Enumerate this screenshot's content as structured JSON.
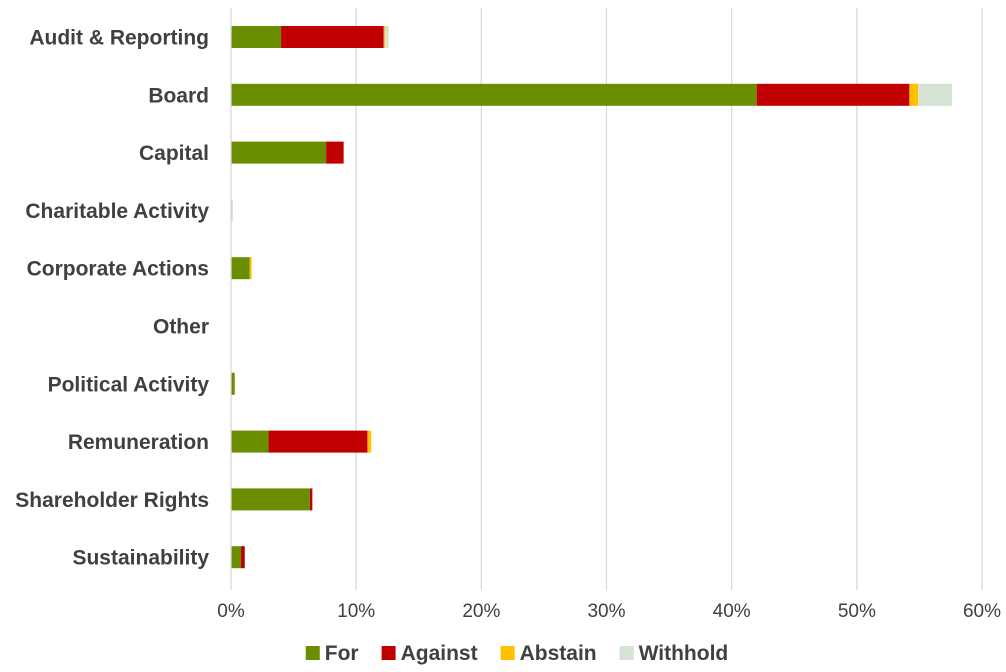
{
  "chart_data": {
    "type": "bar",
    "orientation": "horizontal",
    "stacked": true,
    "categories": [
      "Audit & Reporting",
      "Board",
      "Capital",
      "Charitable Activity",
      "Corporate Actions",
      "Other",
      "Political Activity",
      "Remuneration",
      "Shareholder Rights",
      "Sustainability"
    ],
    "series": [
      {
        "name": "For",
        "color": "#6b8e00",
        "values": [
          4.0,
          42.0,
          7.6,
          0.05,
          1.5,
          0.0,
          0.3,
          3.0,
          6.3,
          0.8
        ]
      },
      {
        "name": "Against",
        "color": "#c00000",
        "values": [
          8.2,
          12.2,
          1.4,
          0.0,
          0.0,
          0.0,
          0.0,
          7.9,
          0.2,
          0.3
        ]
      },
      {
        "name": "Abstain",
        "color": "#ffc000",
        "values": [
          0.1,
          0.7,
          0.0,
          0.0,
          0.15,
          0.0,
          0.0,
          0.3,
          0.0,
          0.0
        ]
      },
      {
        "name": "Withhold",
        "color": "#d5e3d5",
        "values": [
          0.3,
          2.7,
          0.0,
          0.1,
          0.0,
          0.0,
          0.0,
          0.0,
          0.0,
          0.0
        ]
      }
    ],
    "xlim": [
      0,
      60
    ],
    "xticks": [
      0,
      10,
      20,
      30,
      40,
      50,
      60
    ],
    "xtick_labels": [
      "0%",
      "10%",
      "20%",
      "30%",
      "40%",
      "50%",
      "60%"
    ],
    "grid": true,
    "legend_position": "bottom",
    "title": "",
    "xlabel": "",
    "ylabel": ""
  }
}
